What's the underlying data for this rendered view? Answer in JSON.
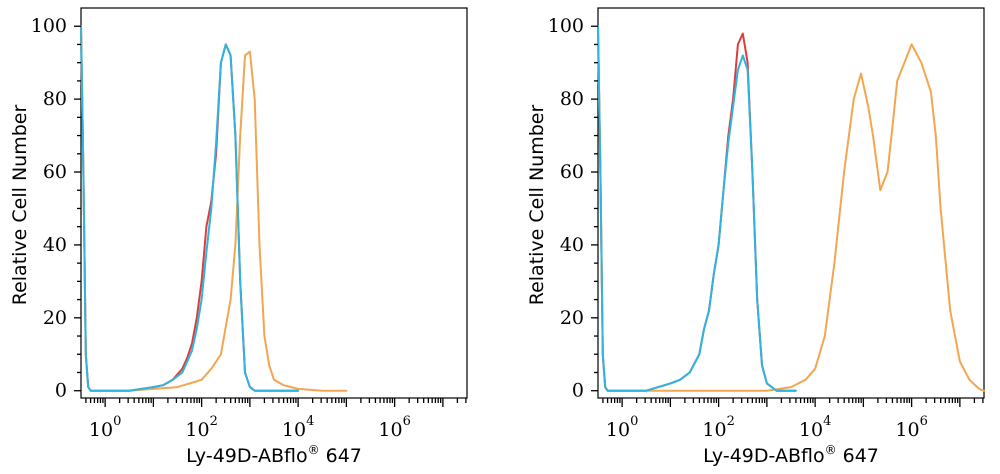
{
  "chart_data": [
    {
      "type": "line",
      "xscale": "log",
      "xlim_log10": [
        -0.5,
        7.5
      ],
      "ylim": [
        -2,
        105
      ],
      "xlabel": "Ly-49D-ABflo",
      "xlabel_sup": "®",
      "xlabel_suffix": " 647",
      "ylabel": "Relative Cell Number",
      "y_ticks": [
        0,
        20,
        40,
        60,
        80,
        100
      ],
      "x_ticks": [
        {
          "base": "10",
          "exp": "0",
          "v": 0
        },
        {
          "base": "10",
          "exp": "2",
          "v": 2
        },
        {
          "base": "10",
          "exp": "4",
          "v": 4
        },
        {
          "base": "10",
          "exp": "6",
          "v": 6
        }
      ],
      "series": [
        {
          "color": "#e03c3c",
          "log10x": [
            -0.5,
            -0.45,
            -0.4,
            -0.35,
            -0.3,
            0,
            0.5,
            1,
            1.2,
            1.4,
            1.6,
            1.7,
            1.8,
            1.9,
            2.0,
            2.1,
            2.2,
            2.3,
            2.4,
            2.5,
            2.6,
            2.7,
            2.8,
            2.9,
            3.0,
            3.1,
            3.3,
            3.6,
            4.0
          ],
          "y": [
            100,
            60,
            10,
            1,
            0,
            0,
            0,
            1,
            1.5,
            3,
            6,
            9,
            13,
            20,
            30,
            45,
            52,
            65,
            90,
            95,
            92,
            70,
            30,
            5,
            1,
            0,
            0,
            0,
            0
          ]
        },
        {
          "color": "#f2a650",
          "log10x": [
            -0.5,
            -0.45,
            -0.4,
            -0.35,
            -0.3,
            0.5,
            1,
            1.5,
            2.0,
            2.2,
            2.4,
            2.6,
            2.7,
            2.8,
            2.9,
            3.0,
            3.1,
            3.2,
            3.3,
            3.4,
            3.5,
            3.7,
            4.0,
            4.5,
            5.0
          ],
          "y": [
            100,
            60,
            10,
            1,
            0,
            0,
            0.5,
            1,
            3,
            6,
            10,
            25,
            40,
            70,
            92,
            93,
            80,
            40,
            15,
            7,
            3,
            1.5,
            0.5,
            0,
            0
          ]
        },
        {
          "color": "#2bb5e0",
          "log10x": [
            -0.5,
            -0.45,
            -0.4,
            -0.35,
            -0.3,
            0,
            0.5,
            1,
            1.2,
            1.4,
            1.6,
            1.7,
            1.8,
            1.9,
            2.0,
            2.1,
            2.2,
            2.3,
            2.4,
            2.5,
            2.6,
            2.7,
            2.8,
            2.9,
            3.0,
            3.1,
            3.3,
            3.6,
            4.0
          ],
          "y": [
            100,
            60,
            10,
            1,
            0,
            0,
            0,
            1,
            1.5,
            3,
            5,
            8,
            11,
            17,
            25,
            38,
            50,
            68,
            90,
            95,
            92,
            70,
            30,
            5,
            1,
            0,
            0,
            0,
            0
          ]
        }
      ]
    },
    {
      "type": "line",
      "xscale": "log",
      "xlim_log10": [
        -0.5,
        7.5
      ],
      "ylim": [
        -2,
        105
      ],
      "xlabel": "Ly-49D-ABflo",
      "xlabel_sup": "®",
      "xlabel_suffix": " 647",
      "ylabel": "Relative Cell Number",
      "y_ticks": [
        0,
        20,
        40,
        60,
        80,
        100
      ],
      "x_ticks": [
        {
          "base": "10",
          "exp": "0",
          "v": 0
        },
        {
          "base": "10",
          "exp": "2",
          "v": 2
        },
        {
          "base": "10",
          "exp": "4",
          "v": 4
        },
        {
          "base": "10",
          "exp": "6",
          "v": 6
        }
      ],
      "series": [
        {
          "color": "#e03c3c",
          "log10x": [
            -0.5,
            -0.45,
            -0.4,
            -0.35,
            -0.3,
            0,
            0.5,
            1,
            1.2,
            1.4,
            1.6,
            1.7,
            1.8,
            1.9,
            2.0,
            2.1,
            2.2,
            2.3,
            2.4,
            2.5,
            2.6,
            2.7,
            2.8,
            2.9,
            3.0,
            3.2,
            3.6
          ],
          "y": [
            100,
            60,
            10,
            1,
            0,
            0,
            0,
            2,
            3,
            5,
            10,
            17,
            22,
            32,
            40,
            55,
            70,
            80,
            95,
            98,
            90,
            60,
            25,
            7,
            2,
            0,
            0
          ]
        },
        {
          "color": "#f2a650",
          "log10x": [
            -0.5,
            -0.45,
            -0.4,
            -0.35,
            -0.3,
            0.5,
            2,
            3,
            3.5,
            3.8,
            4.0,
            4.2,
            4.4,
            4.6,
            4.8,
            4.95,
            5.1,
            5.2,
            5.35,
            5.5,
            5.6,
            5.7,
            5.85,
            6.0,
            6.2,
            6.4,
            6.5,
            6.6,
            6.8,
            7.0,
            7.2,
            7.4,
            7.5
          ],
          "y": [
            100,
            60,
            10,
            1,
            0,
            0,
            0,
            0,
            1,
            3,
            6,
            15,
            35,
            60,
            80,
            87,
            78,
            70,
            55,
            60,
            72,
            85,
            90,
            95,
            90,
            82,
            70,
            50,
            22,
            8,
            3,
            0.5,
            0
          ]
        },
        {
          "color": "#2bb5e0",
          "log10x": [
            -0.5,
            -0.45,
            -0.4,
            -0.35,
            -0.3,
            0,
            0.5,
            1,
            1.2,
            1.4,
            1.6,
            1.7,
            1.8,
            1.9,
            2.0,
            2.1,
            2.2,
            2.3,
            2.4,
            2.5,
            2.6,
            2.7,
            2.8,
            2.9,
            3.0,
            3.2,
            3.6
          ],
          "y": [
            100,
            60,
            10,
            1,
            0,
            0,
            0,
            2,
            3,
            5,
            10,
            17,
            22,
            32,
            40,
            55,
            68,
            78,
            88,
            92,
            88,
            60,
            25,
            7,
            2,
            0,
            0
          ]
        }
      ]
    }
  ]
}
